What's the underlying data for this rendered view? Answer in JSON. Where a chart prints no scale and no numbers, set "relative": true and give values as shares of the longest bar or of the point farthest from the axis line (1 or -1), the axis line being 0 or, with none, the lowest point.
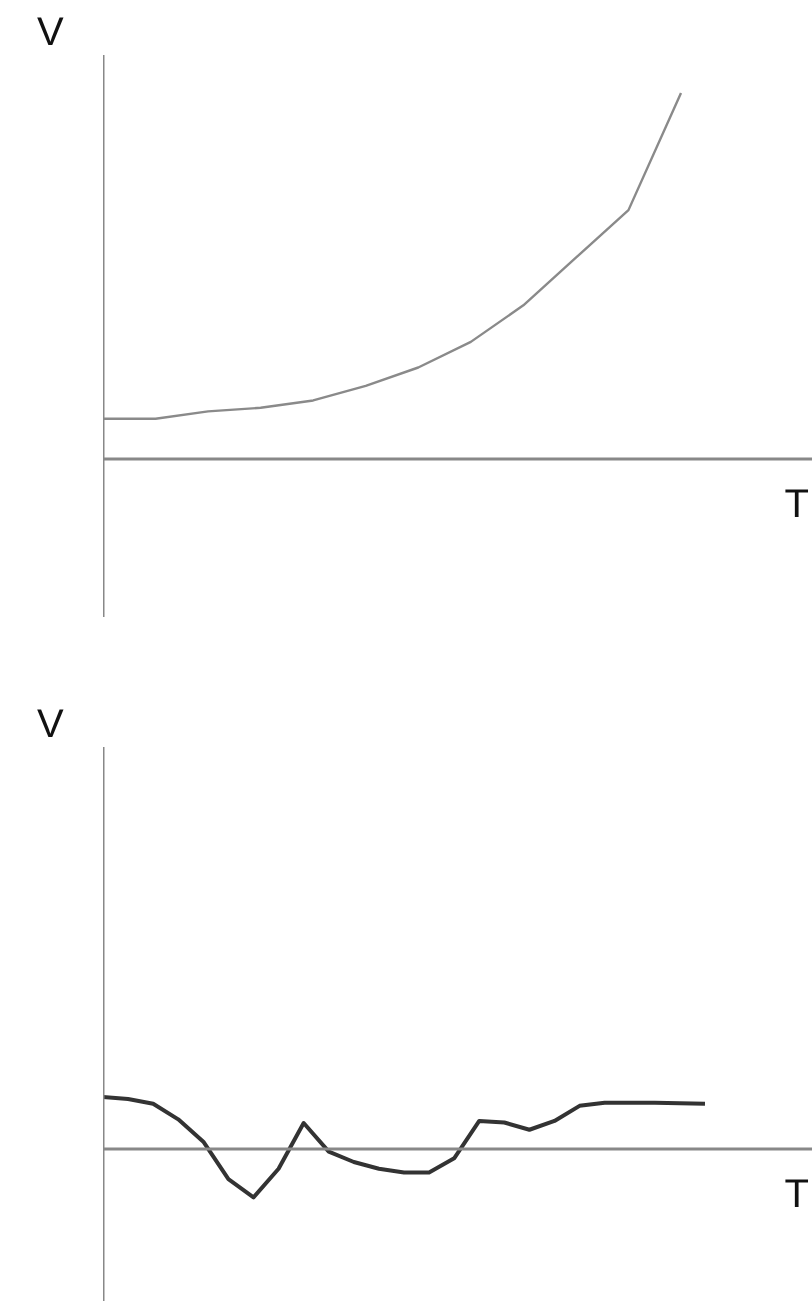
{
  "chart_data": [
    {
      "type": "line",
      "relative": true,
      "xlabel": "T",
      "ylabel": "V",
      "categories": [
        null,
        null,
        null,
        null,
        null,
        null,
        null,
        null,
        null,
        null,
        null,
        null
      ],
      "series": [
        {
          "color": "#8a8a8a",
          "values": [
            0.11,
            0.11,
            0.13,
            0.14,
            0.16,
            0.2,
            0.25,
            0.32,
            0.42,
            0.55,
            0.68,
            1
          ]
        }
      ]
    },
    {
      "type": "line",
      "relative": true,
      "xlabel": "T",
      "ylabel": "V",
      "categories": [
        null,
        null,
        null,
        null,
        null,
        null,
        null,
        null,
        null,
        null,
        null,
        null,
        null,
        null,
        null,
        null,
        null,
        null,
        null,
        null,
        null,
        null,
        null,
        null,
        null
      ],
      "series": [
        {
          "color": "#333333",
          "values": [
            1,
            0.96,
            0.87,
            0.57,
            0.14,
            -0.58,
            -0.93,
            -0.38,
            0.5,
            -0.05,
            -0.25,
            -0.38,
            -0.45,
            -0.45,
            -0.18,
            0.54,
            0.51,
            0.37,
            0.54,
            0.83,
            0.89,
            0.89,
            0.89,
            0.88,
            0.87
          ]
        }
      ]
    }
  ]
}
